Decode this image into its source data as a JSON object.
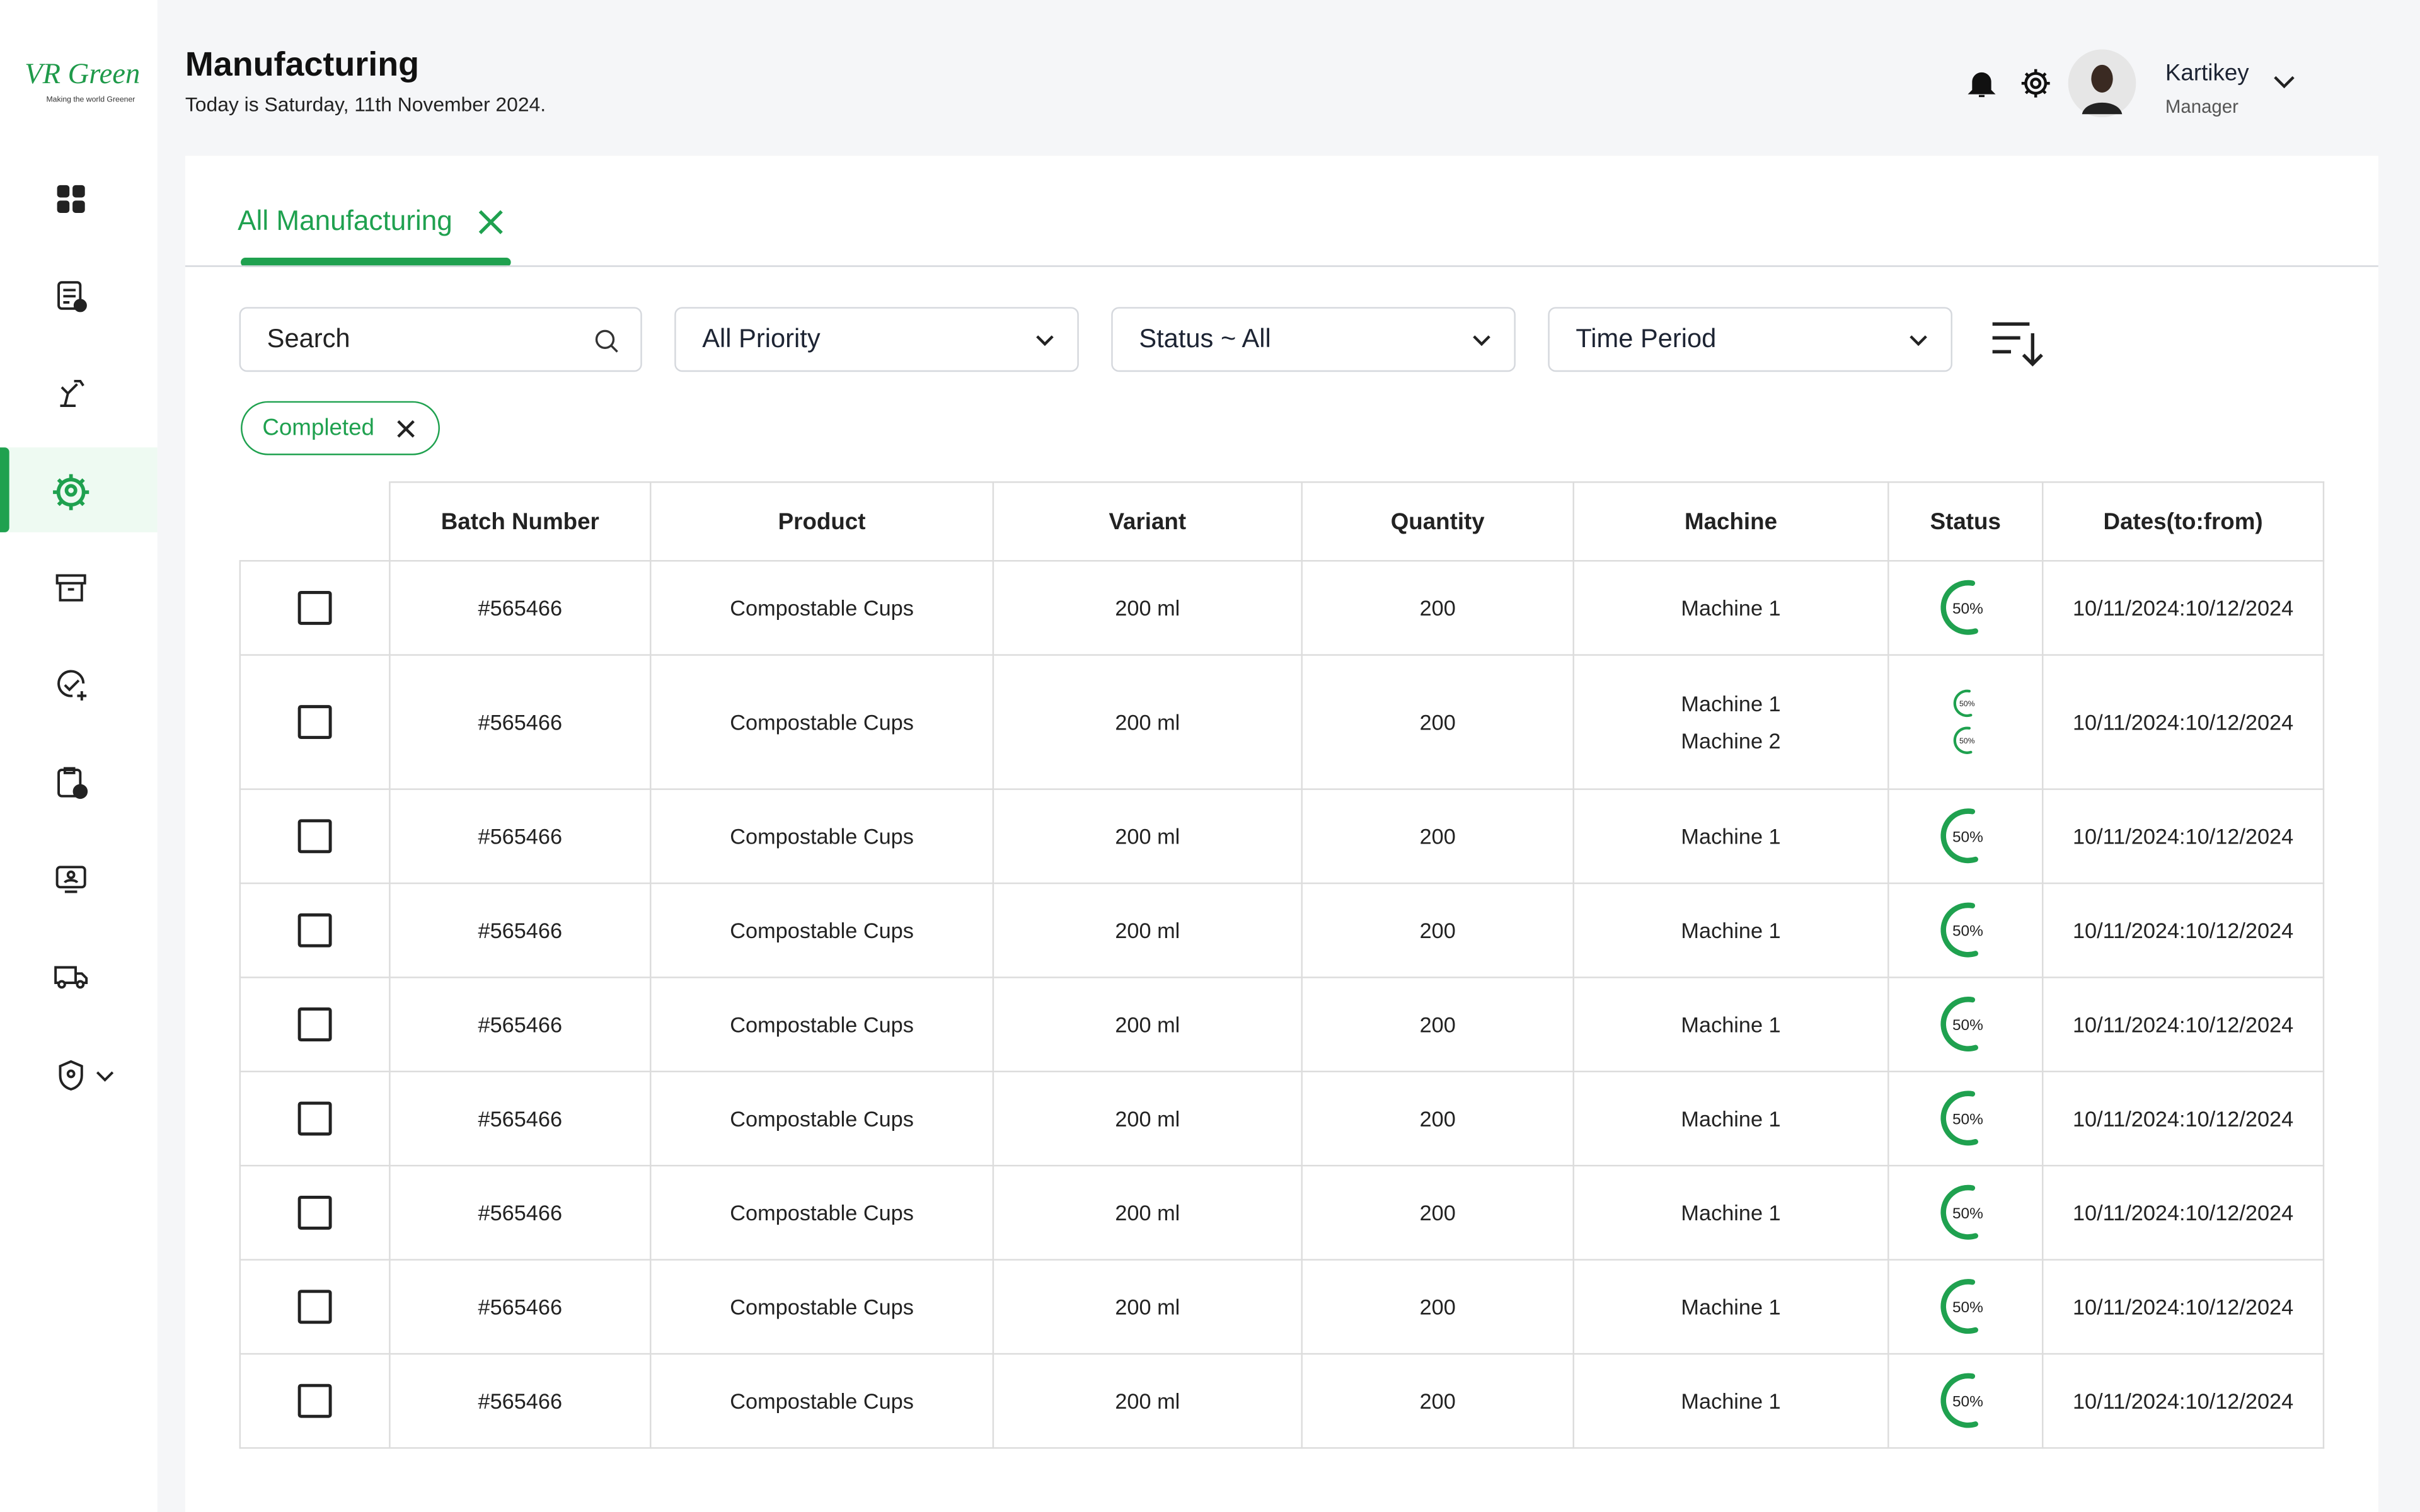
{
  "logo": {
    "brand": "VR Green",
    "tagline": "Making the world Greener"
  },
  "header": {
    "title": "Manufacturing",
    "subtitle": "Today is Saturday, 11th November 2024.",
    "user_name": "Kartikey",
    "user_role": "Manager"
  },
  "tabs": [
    "All Manufacturing"
  ],
  "filters": {
    "search": "Search",
    "priority": "All Priority",
    "status": "Status ~ All",
    "time_period": "Time Period"
  },
  "chips": [
    "Completed"
  ],
  "table": {
    "columns": [
      "Batch Number",
      "Product",
      "Variant",
      "Quantity",
      "Machine",
      "Status",
      "Dates(to:from)"
    ],
    "rows": [
      {
        "batch": "#565466",
        "product": "Compostable Cups",
        "variant": "200 ml",
        "quantity": "200",
        "machines": [
          "Machine 1"
        ],
        "statuses": [
          "50%"
        ],
        "dates": "10/11/2024:10/12/2024"
      },
      {
        "batch": "#565466",
        "product": "Compostable Cups",
        "variant": "200 ml",
        "quantity": "200",
        "machines": [
          "Machine 1",
          "Machine 2"
        ],
        "statuses": [
          "50%",
          "50%"
        ],
        "dates": "10/11/2024:10/12/2024"
      },
      {
        "batch": "#565466",
        "product": "Compostable Cups",
        "variant": "200 ml",
        "quantity": "200",
        "machines": [
          "Machine 1"
        ],
        "statuses": [
          "50%"
        ],
        "dates": "10/11/2024:10/12/2024"
      },
      {
        "batch": "#565466",
        "product": "Compostable Cups",
        "variant": "200 ml",
        "quantity": "200",
        "machines": [
          "Machine 1"
        ],
        "statuses": [
          "50%"
        ],
        "dates": "10/11/2024:10/12/2024"
      },
      {
        "batch": "#565466",
        "product": "Compostable Cups",
        "variant": "200 ml",
        "quantity": "200",
        "machines": [
          "Machine 1"
        ],
        "statuses": [
          "50%"
        ],
        "dates": "10/11/2024:10/12/2024"
      },
      {
        "batch": "#565466",
        "product": "Compostable Cups",
        "variant": "200 ml",
        "quantity": "200",
        "machines": [
          "Machine 1"
        ],
        "statuses": [
          "50%"
        ],
        "dates": "10/11/2024:10/12/2024"
      },
      {
        "batch": "#565466",
        "product": "Compostable Cups",
        "variant": "200 ml",
        "quantity": "200",
        "machines": [
          "Machine 1"
        ],
        "statuses": [
          "50%"
        ],
        "dates": "10/11/2024:10/12/2024"
      },
      {
        "batch": "#565466",
        "product": "Compostable Cups",
        "variant": "200 ml",
        "quantity": "200",
        "machines": [
          "Machine 1"
        ],
        "statuses": [
          "50%"
        ],
        "dates": "10/11/2024:10/12/2024"
      },
      {
        "batch": "#565466",
        "product": "Compostable Cups",
        "variant": "200 ml",
        "quantity": "200",
        "machines": [
          "Machine 1"
        ],
        "statuses": [
          "50%"
        ],
        "dates": "10/11/2024:10/12/2024"
      }
    ]
  }
}
